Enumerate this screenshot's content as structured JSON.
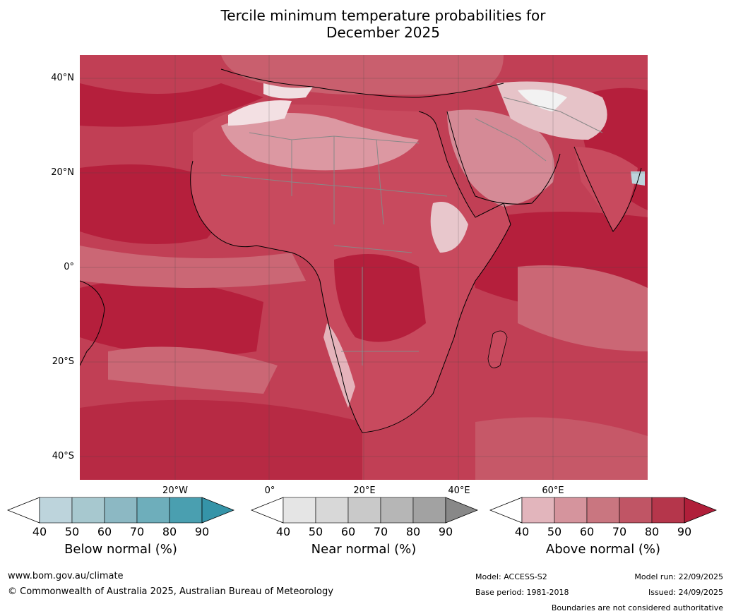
{
  "title_line1": "Tercile minimum temperature probabilities for",
  "title_line2": "December 2025",
  "lat_labels": [
    "40°N",
    "20°N",
    "0°",
    "20°S",
    "40°S"
  ],
  "lon_labels": [
    "20°W",
    "0°",
    "20°E",
    "40°E",
    "60°E"
  ],
  "colorbars": [
    {
      "title": "Below normal (%)",
      "ticks": [
        "40",
        "50",
        "60",
        "70",
        "80",
        "90"
      ],
      "colors": [
        "#bdd4dc",
        "#a7c8cf",
        "#8cb8c3",
        "#6eaebb",
        "#4a9fb0"
      ],
      "over": "#3594a8"
    },
    {
      "title": "Near normal (%)",
      "ticks": [
        "40",
        "50",
        "60",
        "70",
        "80",
        "90"
      ],
      "colors": [
        "#e5e5e5",
        "#d8d8d8",
        "#c9c9c9",
        "#b6b6b6",
        "#a2a2a2"
      ],
      "over": "#888888"
    },
    {
      "title": "Above normal (%)",
      "ticks": [
        "40",
        "50",
        "60",
        "70",
        "80",
        "90"
      ],
      "colors": [
        "#e2b5bc",
        "#d5949d",
        "#c97680",
        "#c05565",
        "#b5364b"
      ],
      "over": "#b01f3a"
    }
  ],
  "footer": {
    "website": "www.bom.gov.au/climate",
    "copyright": "© Commonwealth of Australia 2025, Australian Bureau of Meteorology",
    "model": "Model: ACCESS-S2",
    "base_period": "Base period: 1981-2018",
    "model_run": "Model run: 22/09/2025",
    "issued": "Issued: 24/09/2025",
    "disclaimer": "Boundaries are not considered authoritative"
  }
}
